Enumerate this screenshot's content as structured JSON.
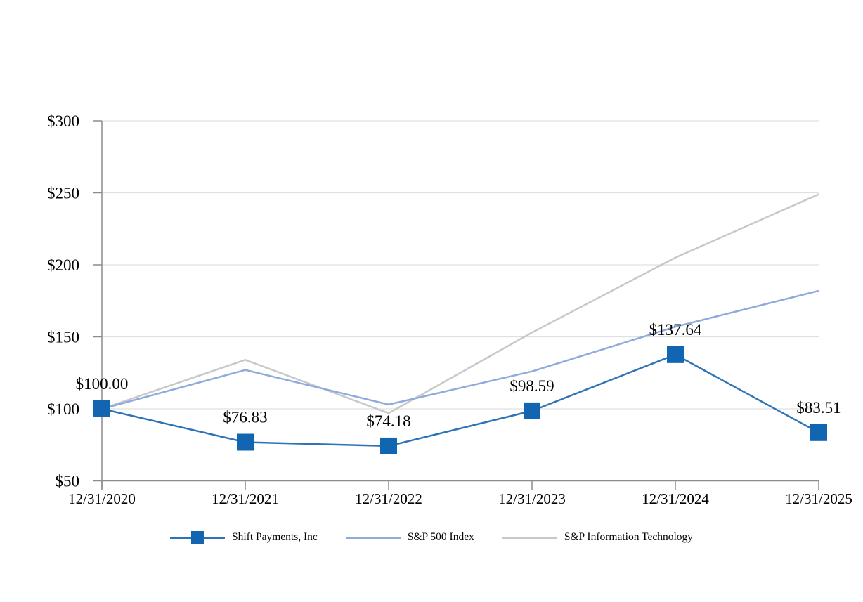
{
  "chart_data": {
    "type": "line",
    "title": "",
    "x_labels": [
      "12/31/2020",
      "12/31/2021",
      "12/31/2022",
      "12/31/2023",
      "12/31/2024",
      "12/31/2025"
    ],
    "y_axis": {
      "min": 50,
      "max": 300,
      "step": 50,
      "tick_labels": [
        "$50",
        "$100",
        "$150",
        "$200",
        "$250",
        "$300"
      ]
    },
    "grid": true,
    "legend_position": "bottom",
    "series": [
      {
        "name": "Shift Payments, Inc",
        "line_color": "#2E74B5",
        "marker": "square",
        "marker_color": "#1266B1",
        "values": [
          100.0,
          76.83,
          74.18,
          98.59,
          137.64,
          83.51
        ],
        "data_labels": [
          "$100.00",
          "$76.83",
          "$74.18",
          "$98.59",
          "$137.64",
          "$83.51"
        ]
      },
      {
        "name": "S&P 500 Index",
        "line_color": "#8FAADC",
        "marker": "none",
        "marker_color": "",
        "values": [
          100,
          127,
          103,
          126,
          157,
          182
        ],
        "data_labels": []
      },
      {
        "name": "S&P Information Technology",
        "line_color": "#C8C8C8",
        "marker": "none",
        "marker_color": "",
        "values": [
          100,
          134,
          97,
          153,
          205,
          249
        ],
        "data_labels": []
      }
    ]
  },
  "style": {
    "grid_color": "#E0E0E0",
    "axis_color": "#8C8C8C",
    "text_color": "#000000",
    "background": "#FFFFFF"
  }
}
